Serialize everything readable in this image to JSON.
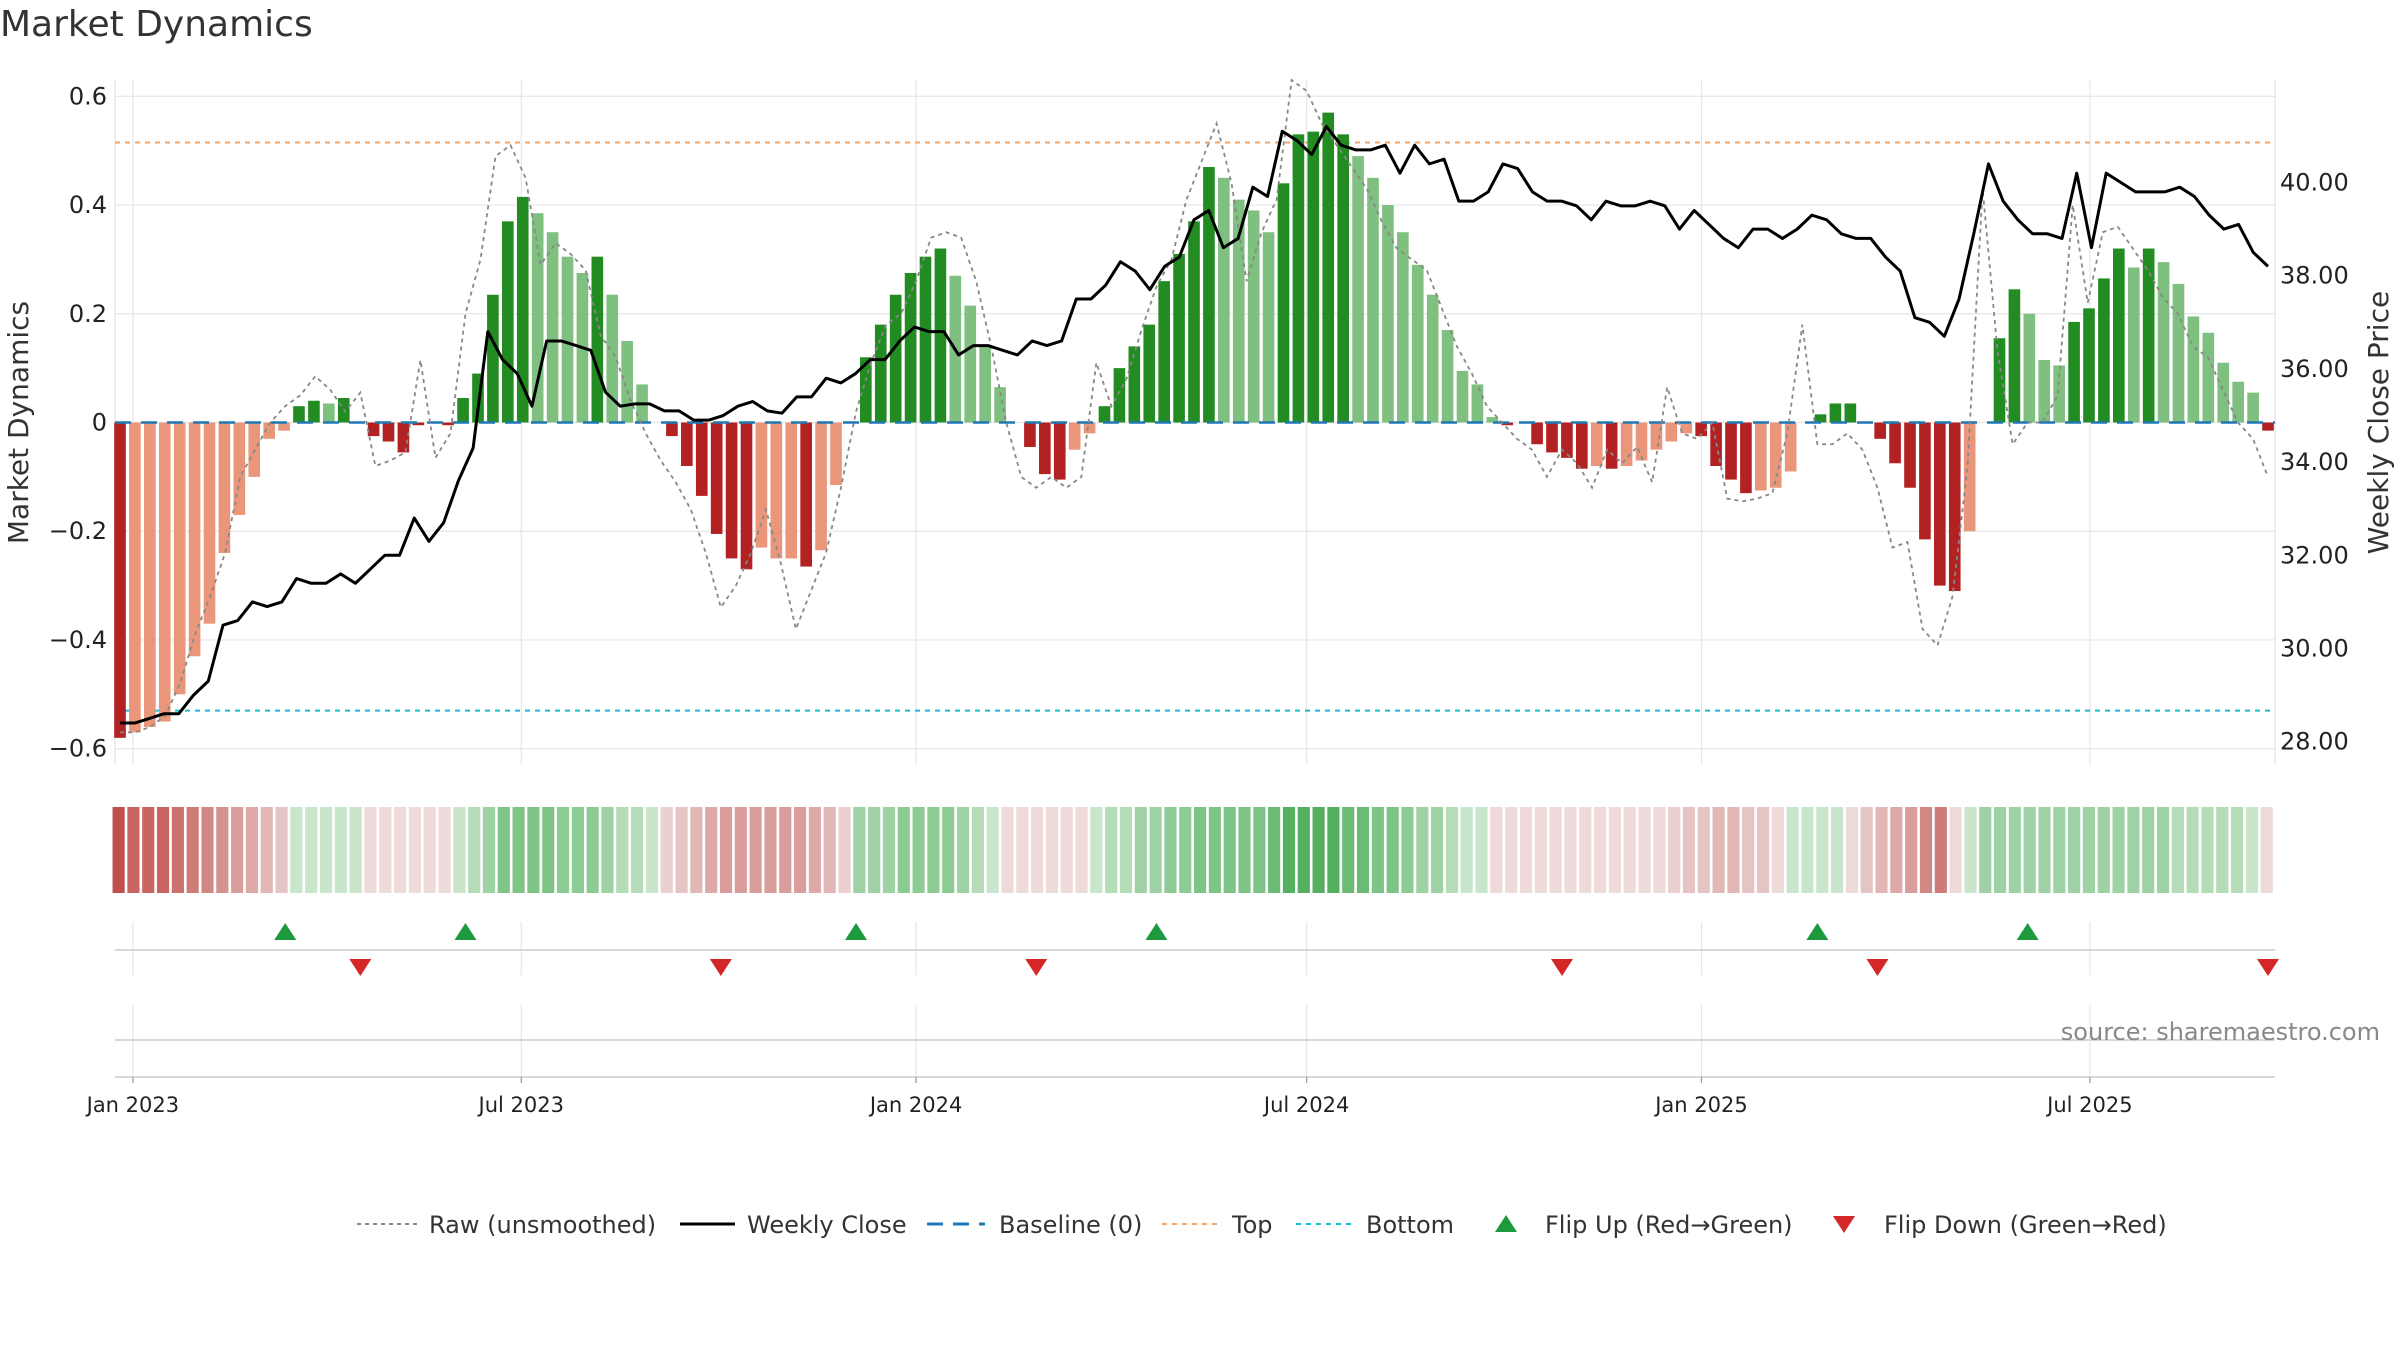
{
  "title": "Market Dynamics",
  "source_text": "source: sharemaestro.com",
  "colors": {
    "strong_green": "#228b22",
    "light_green": "#7fbf7f",
    "strong_red": "#b22222",
    "light_red": "#e9967a",
    "weekly_close": "#000000",
    "raw": "#888888",
    "baseline": "#1f77b4",
    "top": "#f4a460",
    "bottom": "#17becf",
    "flip_up": "#1e9a3e",
    "flip_down": "#d62728",
    "grid": "#e6e6e6"
  },
  "chart_data": {
    "type": "bar",
    "title": "Market Dynamics",
    "ylabel": "Market Dynamics",
    "y2label": "Weekly Close Price",
    "ylim": [
      -0.63,
      0.63
    ],
    "y2lim": [
      27.5,
      42.2
    ],
    "yticks": [
      0.6,
      0.4,
      0.2,
      0,
      -0.2,
      -0.4,
      -0.6
    ],
    "ytick_labels": [
      "0.6",
      "0.4",
      "0.2",
      "0",
      "−0.2",
      "−0.4",
      "−0.6"
    ],
    "y2ticks": [
      40,
      38,
      36,
      34,
      32,
      30,
      28
    ],
    "y2tick_labels": [
      "40.00",
      "38.00",
      "36.00",
      "34.00",
      "32.00",
      "30.00",
      "28.00"
    ],
    "x_start": "2022-12-26",
    "x_end": "2025-09-22",
    "xticks": [
      "2023-01-01",
      "2023-07-01",
      "2024-01-01",
      "2024-07-01",
      "2025-01-01",
      "2025-07-01"
    ],
    "xtick_labels": [
      "Jan 2023",
      "Jul 2023",
      "Jan 2024",
      "Jul 2024",
      "Jan 2025",
      "Jul 2025"
    ],
    "grid": true,
    "top_level": 0.515,
    "bottom_level": -0.53,
    "baseline": 0,
    "legend_position": "bottom",
    "legend": [
      "Raw (unsmoothed)",
      "Weekly Close",
      "Baseline (0)",
      "Top",
      "Bottom",
      "Flip Up (Red→Green)",
      "Flip Down (Green→Red)"
    ],
    "bars": [
      [
        -0.58,
        "strong_red"
      ],
      [
        -0.57,
        "light_red"
      ],
      [
        -0.56,
        "light_red"
      ],
      [
        -0.55,
        "light_red"
      ],
      [
        -0.5,
        "light_red"
      ],
      [
        -0.43,
        "light_red"
      ],
      [
        -0.37,
        "light_red"
      ],
      [
        -0.24,
        "light_red"
      ],
      [
        -0.17,
        "light_red"
      ],
      [
        -0.1,
        "light_red"
      ],
      [
        -0.03,
        "light_red"
      ],
      [
        -0.015,
        "light_red"
      ],
      [
        0.03,
        "strong_green"
      ],
      [
        0.04,
        "strong_green"
      ],
      [
        0.035,
        "light_green"
      ],
      [
        0.045,
        "strong_green"
      ],
      [
        0,
        "light_green"
      ],
      [
        -0.025,
        "strong_red"
      ],
      [
        -0.035,
        "strong_red"
      ],
      [
        -0.055,
        "strong_red"
      ],
      [
        -0.005,
        "strong_red"
      ],
      [
        0.0,
        "light_red"
      ],
      [
        -0.005,
        "strong_red"
      ],
      [
        0.045,
        "strong_green"
      ],
      [
        0.09,
        "strong_green"
      ],
      [
        0.235,
        "strong_green"
      ],
      [
        0.37,
        "strong_green"
      ],
      [
        0.415,
        "strong_green"
      ],
      [
        0.385,
        "light_green"
      ],
      [
        0.35,
        "light_green"
      ],
      [
        0.305,
        "light_green"
      ],
      [
        0.275,
        "light_green"
      ],
      [
        0.305,
        "strong_green"
      ],
      [
        0.235,
        "light_green"
      ],
      [
        0.15,
        "light_green"
      ],
      [
        0.07,
        "light_green"
      ],
      [
        0,
        "light_green"
      ],
      [
        -0.025,
        "strong_red"
      ],
      [
        -0.08,
        "strong_red"
      ],
      [
        -0.135,
        "strong_red"
      ],
      [
        -0.205,
        "strong_red"
      ],
      [
        -0.25,
        "strong_red"
      ],
      [
        -0.27,
        "strong_red"
      ],
      [
        -0.23,
        "light_red"
      ],
      [
        -0.25,
        "light_red"
      ],
      [
        -0.25,
        "light_red"
      ],
      [
        -0.265,
        "strong_red"
      ],
      [
        -0.235,
        "light_red"
      ],
      [
        -0.115,
        "light_red"
      ],
      [
        0,
        "light_red"
      ],
      [
        0.12,
        "strong_green"
      ],
      [
        0.18,
        "strong_green"
      ],
      [
        0.235,
        "strong_green"
      ],
      [
        0.275,
        "strong_green"
      ],
      [
        0.305,
        "strong_green"
      ],
      [
        0.32,
        "strong_green"
      ],
      [
        0.27,
        "light_green"
      ],
      [
        0.215,
        "light_green"
      ],
      [
        0.14,
        "light_green"
      ],
      [
        0.065,
        "light_green"
      ],
      [
        0,
        "light_green"
      ],
      [
        -0.045,
        "strong_red"
      ],
      [
        -0.095,
        "strong_red"
      ],
      [
        -0.105,
        "strong_red"
      ],
      [
        -0.05,
        "light_red"
      ],
      [
        -0.02,
        "light_red"
      ],
      [
        0.03,
        "strong_green"
      ],
      [
        0.1,
        "strong_green"
      ],
      [
        0.14,
        "strong_green"
      ],
      [
        0.18,
        "strong_green"
      ],
      [
        0.26,
        "strong_green"
      ],
      [
        0.31,
        "strong_green"
      ],
      [
        0.37,
        "strong_green"
      ],
      [
        0.47,
        "strong_green"
      ],
      [
        0.45,
        "light_green"
      ],
      [
        0.41,
        "light_green"
      ],
      [
        0.39,
        "light_green"
      ],
      [
        0.35,
        "light_green"
      ],
      [
        0.44,
        "strong_green"
      ],
      [
        0.53,
        "strong_green"
      ],
      [
        0.535,
        "strong_green"
      ],
      [
        0.57,
        "strong_green"
      ],
      [
        0.53,
        "strong_green"
      ],
      [
        0.49,
        "light_green"
      ],
      [
        0.45,
        "light_green"
      ],
      [
        0.4,
        "light_green"
      ],
      [
        0.35,
        "light_green"
      ],
      [
        0.29,
        "light_green"
      ],
      [
        0.235,
        "light_green"
      ],
      [
        0.17,
        "light_green"
      ],
      [
        0.095,
        "light_green"
      ],
      [
        0.07,
        "light_green"
      ],
      [
        0.01,
        "light_green"
      ],
      [
        -0.005,
        "strong_red"
      ],
      [
        0,
        "light_red"
      ],
      [
        -0.04,
        "strong_red"
      ],
      [
        -0.055,
        "strong_red"
      ],
      [
        -0.065,
        "strong_red"
      ],
      [
        -0.085,
        "strong_red"
      ],
      [
        -0.08,
        "light_red"
      ],
      [
        -0.085,
        "strong_red"
      ],
      [
        -0.08,
        "light_red"
      ],
      [
        -0.07,
        "light_red"
      ],
      [
        -0.05,
        "light_red"
      ],
      [
        -0.035,
        "light_red"
      ],
      [
        -0.02,
        "light_red"
      ],
      [
        -0.025,
        "strong_red"
      ],
      [
        -0.08,
        "strong_red"
      ],
      [
        -0.105,
        "strong_red"
      ],
      [
        -0.13,
        "strong_red"
      ],
      [
        -0.125,
        "light_red"
      ],
      [
        -0.12,
        "light_red"
      ],
      [
        -0.09,
        "light_red"
      ],
      [
        0,
        "light_red"
      ],
      [
        0.015,
        "strong_green"
      ],
      [
        0.035,
        "strong_green"
      ],
      [
        0.035,
        "strong_green"
      ],
      [
        0,
        "light_green"
      ],
      [
        -0.03,
        "strong_red"
      ],
      [
        -0.075,
        "strong_red"
      ],
      [
        -0.12,
        "strong_red"
      ],
      [
        -0.215,
        "strong_red"
      ],
      [
        -0.3,
        "strong_red"
      ],
      [
        -0.31,
        "strong_red"
      ],
      [
        -0.2,
        "light_red"
      ],
      [
        0,
        "light_red"
      ],
      [
        0.155,
        "strong_green"
      ],
      [
        0.245,
        "strong_green"
      ],
      [
        0.2,
        "light_green"
      ],
      [
        0.115,
        "light_green"
      ],
      [
        0.105,
        "light_green"
      ],
      [
        0.185,
        "strong_green"
      ],
      [
        0.21,
        "strong_green"
      ],
      [
        0.265,
        "strong_green"
      ],
      [
        0.32,
        "strong_green"
      ],
      [
        0.285,
        "light_green"
      ],
      [
        0.32,
        "strong_green"
      ],
      [
        0.295,
        "light_green"
      ],
      [
        0.255,
        "light_green"
      ],
      [
        0.195,
        "light_green"
      ],
      [
        0.165,
        "light_green"
      ],
      [
        0.11,
        "light_green"
      ],
      [
        0.075,
        "light_green"
      ],
      [
        0.055,
        "light_green"
      ],
      [
        -0.015,
        "strong_red"
      ]
    ],
    "weekly_close": [
      28.4,
      28.4,
      28.5,
      28.6,
      28.6,
      29.0,
      29.3,
      30.5,
      30.6,
      31.0,
      30.9,
      31.0,
      31.5,
      31.4,
      31.4,
      31.6,
      31.4,
      31.7,
      32.0,
      32.0,
      32.8,
      32.3,
      32.7,
      33.6,
      34.3,
      36.8,
      36.2,
      35.9,
      35.2,
      36.6,
      36.6,
      36.5,
      36.4,
      35.5,
      35.2,
      35.25,
      35.25,
      35.1,
      35.1,
      34.9,
      34.9,
      35.0,
      35.2,
      35.3,
      35.1,
      35.05,
      35.4,
      35.4,
      35.8,
      35.7,
      35.9,
      36.2,
      36.2,
      36.6,
      36.9,
      36.8,
      36.8,
      36.3,
      36.5,
      36.5,
      36.4,
      36.3,
      36.6,
      36.5,
      36.6,
      37.5,
      37.5,
      37.8,
      38.3,
      38.1,
      37.7,
      38.2,
      38.4,
      39.2,
      39.4,
      38.6,
      38.8,
      39.9,
      39.7,
      41.1,
      40.9,
      40.6,
      41.2,
      40.8,
      40.7,
      40.7,
      40.8,
      40.2,
      40.8,
      40.4,
      40.5,
      39.6,
      39.6,
      39.8,
      40.4,
      40.3,
      39.8,
      39.6,
      39.6,
      39.5,
      39.2,
      39.6,
      39.5,
      39.5,
      39.6,
      39.5,
      39.0,
      39.4,
      39.1,
      38.8,
      38.6,
      39.0,
      39.0,
      38.8,
      39.0,
      39.3,
      39.2,
      38.9,
      38.8,
      38.8,
      38.4,
      38.1,
      37.1,
      37.0,
      36.7,
      37.5,
      38.9,
      40.4,
      39.6,
      39.2,
      38.9,
      38.9,
      38.8,
      40.2,
      38.6,
      40.2,
      40.0,
      39.8,
      39.8,
      39.8,
      39.9,
      39.7,
      39.3,
      39.0,
      39.1,
      38.5,
      38.2
    ],
    "raw": [
      -0.57,
      -0.57,
      -0.56,
      -0.54,
      -0.48,
      -0.39,
      -0.32,
      -0.24,
      -0.1,
      -0.05,
      0.0,
      0.03,
      0.05,
      0.085,
      0.06,
      0.02,
      0.055,
      -0.08,
      -0.07,
      -0.055,
      0.115,
      -0.065,
      -0.02,
      0.2,
      0.3,
      0.49,
      0.51,
      0.45,
      0.29,
      0.33,
      0.31,
      0.28,
      0.16,
      0.12,
      0.04,
      -0.02,
      -0.07,
      -0.11,
      -0.16,
      -0.24,
      -0.34,
      -0.3,
      -0.24,
      -0.16,
      -0.26,
      -0.38,
      -0.31,
      -0.24,
      -0.12,
      0.02,
      0.11,
      0.18,
      0.2,
      0.26,
      0.34,
      0.35,
      0.34,
      0.26,
      0.14,
      0.0,
      -0.1,
      -0.12,
      -0.1,
      -0.12,
      -0.1,
      0.11,
      0.03,
      0.08,
      0.17,
      0.25,
      0.3,
      0.41,
      0.48,
      0.55,
      0.44,
      0.26,
      0.35,
      0.41,
      0.63,
      0.61,
      0.55,
      0.51,
      0.47,
      0.43,
      0.37,
      0.32,
      0.3,
      0.28,
      0.21,
      0.14,
      0.09,
      0.03,
      0.0,
      -0.03,
      -0.05,
      -0.1,
      -0.05,
      -0.075,
      -0.12,
      -0.05,
      -0.075,
      -0.045,
      -0.11,
      0.065,
      -0.02,
      -0.03,
      0.0,
      -0.14,
      -0.145,
      -0.14,
      -0.13,
      -0.02,
      0.18,
      -0.04,
      -0.04,
      -0.02,
      -0.05,
      -0.12,
      -0.23,
      -0.22,
      -0.38,
      -0.41,
      -0.32,
      -0.08,
      0.43,
      0.13,
      -0.04,
      0.0,
      0.0,
      0.05,
      0.4,
      0.22,
      0.35,
      0.36,
      0.32,
      0.28,
      0.23,
      0.2,
      0.14,
      0.12,
      0.06,
      0.0,
      -0.03,
      -0.1
    ],
    "regime_strip": [
      "#c0504d",
      "#c86561",
      "#c86561",
      "#c86561",
      "#cc706d",
      "#cf7b78",
      "#d38784",
      "#d69290",
      "#d99d9c",
      "#ddaaa8",
      "#e1b8b6",
      "#e5c5c3",
      "#c9e6cc",
      "#c9e6cc",
      "#c9e6cc",
      "#c9e6cc",
      "#c9e6cc",
      "#efdada",
      "#efdada",
      "#efdada",
      "#efdada",
      "#efdada",
      "#efdada",
      "#c9e6cc",
      "#b3dcb7",
      "#9ed1a3",
      "#7fc487",
      "#7fc487",
      "#7fc487",
      "#7fc487",
      "#8ccb93",
      "#8ccb93",
      "#8ccb93",
      "#9ed1a3",
      "#b3dcb7",
      "#b3dcb7",
      "#c9e6cc",
      "#ebd0cf",
      "#e5c5c3",
      "#e1b8b6",
      "#ddaaa8",
      "#d99d9c",
      "#d99d9c",
      "#d99d9c",
      "#d99d9c",
      "#d99d9c",
      "#d99d9c",
      "#ddaaa8",
      "#e1b8b6",
      "#ebd0cf",
      "#9ed1a3",
      "#9ed1a3",
      "#9ed1a3",
      "#8ccb93",
      "#8ccb93",
      "#8ccb93",
      "#8ccb93",
      "#9ed1a3",
      "#b3dcb7",
      "#c9e6cc",
      "#efdada",
      "#efdada",
      "#efdada",
      "#efdada",
      "#efdada",
      "#efdada",
      "#c9e6cc",
      "#b3dcb7",
      "#b3dcb7",
      "#9ed1a3",
      "#9ed1a3",
      "#8ccb93",
      "#8ccb93",
      "#7fc487",
      "#7fc487",
      "#7fc487",
      "#7fc487",
      "#7fc487",
      "#6bbb74",
      "#54b05e",
      "#54b05e",
      "#54b05e",
      "#54b05e",
      "#6bbb74",
      "#6bbb74",
      "#7fc487",
      "#7fc487",
      "#8ccb93",
      "#9ed1a3",
      "#9ed1a3",
      "#b3dcb7",
      "#c9e6cc",
      "#c9e6cc",
      "#efdada",
      "#efdada",
      "#efdada",
      "#efdada",
      "#efdada",
      "#efdada",
      "#efdada",
      "#efdada",
      "#efdada",
      "#efdada",
      "#efdada",
      "#efdada",
      "#ebd0cf",
      "#e5c5c3",
      "#e5c5c3",
      "#e1b8b6",
      "#e1b8b6",
      "#e5c5c3",
      "#e5c5c3",
      "#efdada",
      "#c9e6cc",
      "#c9e6cc",
      "#c9e6cc",
      "#c9e6cc",
      "#efdada",
      "#e5c5c3",
      "#e1b8b6",
      "#ddaaa8",
      "#d99d9c",
      "#d38784",
      "#cf7b78",
      "#efdada",
      "#c9e6cc",
      "#9ed1a3",
      "#9ed1a3",
      "#9ed1a3",
      "#9ed1a3",
      "#9ed1a3",
      "#9ed1a3",
      "#9ed1a3",
      "#9ed1a3",
      "#9ed1a3",
      "#9ed1a3",
      "#9ed1a3",
      "#9ed1a3",
      "#9ed1a3",
      "#b3dcb7",
      "#b3dcb7",
      "#b3dcb7",
      "#b3dcb7",
      "#b3dcb7",
      "#c9e6cc",
      "#efdada"
    ],
    "flips_up": [
      "2023-03-13",
      "2023-06-05",
      "2023-12-04",
      "2024-04-22",
      "2025-02-24",
      "2025-06-02"
    ],
    "flips_down": [
      "2023-04-17",
      "2023-10-02",
      "2024-02-26",
      "2024-10-28",
      "2025-03-24",
      "2025-09-22"
    ]
  }
}
